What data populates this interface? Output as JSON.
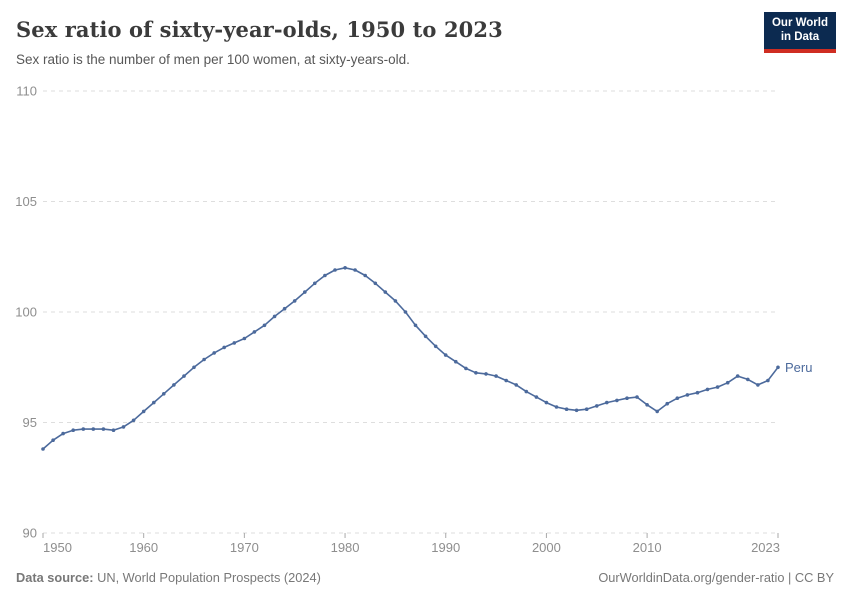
{
  "header": {
    "title": "Sex ratio of sixty-year-olds, 1950 to 2023",
    "subtitle": "Sex ratio is the number of men per 100 women, at sixty-years-old.",
    "logo": {
      "line1": "Our World",
      "line2": "in Data"
    }
  },
  "footer": {
    "source_label": "Data source:",
    "source_text": " UN, World Population Prospects (2024)",
    "link_text": "OurWorldinData.org/gender-ratio | CC BY"
  },
  "colors": {
    "series_blue": "#4C6A9C",
    "gridline": "#dedede",
    "axis_text": "#8e8e8e",
    "tick_mark": "#aaaaaa",
    "logo_navy": "#0c2a50",
    "logo_red": "#cf2d22",
    "title_text": "#3b3b3b",
    "subtitle_text": "#575757",
    "footer_text": "#787878"
  },
  "chart_data": {
    "type": "line",
    "title": "Sex ratio of sixty-year-olds, 1950 to 2023",
    "subtitle": "Sex ratio is the number of men per 100 women, at sixty-years-old.",
    "xlabel": "",
    "ylabel": "",
    "ylim": [
      90,
      110
    ],
    "yticks": [
      90,
      95,
      100,
      105,
      110
    ],
    "xticks": [
      1950,
      1960,
      1970,
      1980,
      1990,
      2000,
      2010,
      2023
    ],
    "grid": true,
    "legend_position": "line-end-label",
    "x": [
      1950,
      1951,
      1952,
      1953,
      1954,
      1955,
      1956,
      1957,
      1958,
      1959,
      1960,
      1961,
      1962,
      1963,
      1964,
      1965,
      1966,
      1967,
      1968,
      1969,
      1970,
      1971,
      1972,
      1973,
      1974,
      1975,
      1976,
      1977,
      1978,
      1979,
      1980,
      1981,
      1982,
      1983,
      1984,
      1985,
      1986,
      1987,
      1988,
      1989,
      1990,
      1991,
      1992,
      1993,
      1994,
      1995,
      1996,
      1997,
      1998,
      1999,
      2000,
      2001,
      2002,
      2003,
      2004,
      2005,
      2006,
      2007,
      2008,
      2009,
      2010,
      2011,
      2012,
      2013,
      2014,
      2015,
      2016,
      2017,
      2018,
      2019,
      2020,
      2021,
      2022,
      2023
    ],
    "series": [
      {
        "name": "Peru",
        "color": "#4C6A9C",
        "values": [
          93.8,
          94.2,
          94.5,
          94.65,
          94.7,
          94.7,
          94.7,
          94.65,
          94.8,
          95.1,
          95.5,
          95.9,
          96.3,
          96.7,
          97.1,
          97.5,
          97.85,
          98.15,
          98.4,
          98.6,
          98.8,
          99.1,
          99.4,
          99.8,
          100.15,
          100.5,
          100.9,
          101.3,
          101.65,
          101.9,
          102.0,
          101.9,
          101.65,
          101.3,
          100.9,
          100.5,
          100.0,
          99.4,
          98.9,
          98.45,
          98.05,
          97.75,
          97.45,
          97.25,
          97.2,
          97.1,
          96.9,
          96.7,
          96.4,
          96.15,
          95.9,
          95.7,
          95.6,
          95.55,
          95.6,
          95.75,
          95.9,
          96.0,
          96.1,
          96.15,
          95.8,
          95.5,
          95.85,
          96.1,
          96.25,
          96.35,
          96.5,
          96.6,
          96.8,
          97.1,
          96.95,
          96.7,
          96.9,
          97.5
        ]
      }
    ]
  }
}
